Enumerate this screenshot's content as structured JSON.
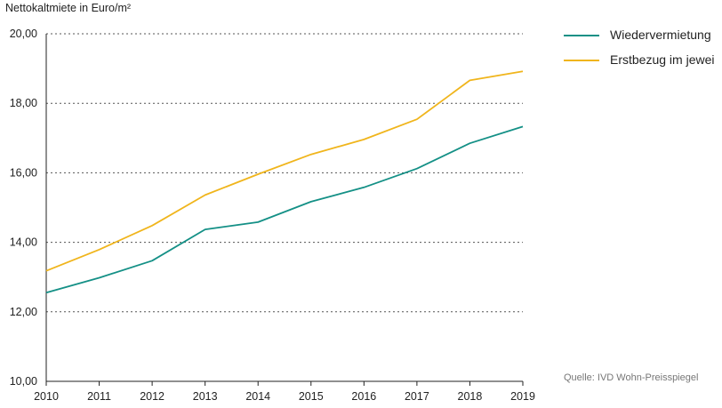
{
  "chart_data": {
    "type": "line",
    "ylabel": "Nettokaltmiete in Euro/m²",
    "xlabel": "",
    "x": [
      "2010",
      "2011",
      "2012",
      "2013",
      "2014",
      "2015",
      "2016",
      "2017",
      "2018",
      "2019"
    ],
    "ylim": [
      10,
      20
    ],
    "yticks": [
      10,
      12,
      14,
      16,
      18,
      20
    ],
    "ytick_labels": [
      "10,00",
      "12,00",
      "14,00",
      "16,00",
      "18,00",
      "20,00"
    ],
    "grid": "horizontal-dotted",
    "legend_position": "right",
    "series": [
      {
        "name": "Wiedervermietung",
        "color": "#149086",
        "values": [
          12.55,
          12.98,
          13.47,
          14.37,
          14.58,
          15.17,
          15.58,
          16.12,
          16.85,
          17.33
        ]
      },
      {
        "name": "Erstbezug im jewei",
        "color": "#f0b51c",
        "values": [
          13.18,
          13.79,
          14.48,
          15.36,
          15.96,
          16.53,
          16.96,
          17.54,
          18.66,
          18.92
        ]
      }
    ],
    "source": "Quelle: IVD Wohn-Preisspiegel"
  }
}
